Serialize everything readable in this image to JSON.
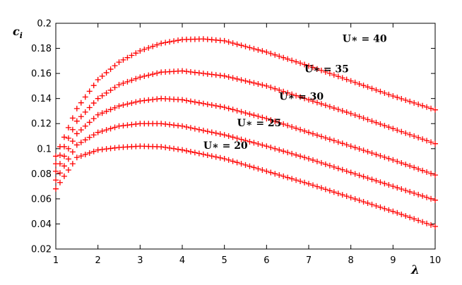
{
  "chart_data": {
    "type": "scatter",
    "xlabel": "λ",
    "ylabel": "c",
    "ylabel_sub": "i",
    "xlim": [
      1,
      10
    ],
    "ylim": [
      0.02,
      0.2
    ],
    "xticks": [
      "1",
      "2",
      "3",
      "4",
      "5",
      "6",
      "7",
      "8",
      "9",
      "10"
    ],
    "yticks": [
      "0.02",
      "0.04",
      "0.06",
      "0.08",
      "0.1",
      "0.12",
      "0.14",
      "0.16",
      "0.18",
      "0.2"
    ],
    "grid": false,
    "marker": "+",
    "marker_color": "#ff0000",
    "series": [
      {
        "label": "U∗ = 20",
        "points": [
          [
            1,
            0.068
          ],
          [
            1.5,
            0.093
          ],
          [
            2,
            0.099
          ],
          [
            2.5,
            0.101
          ],
          [
            3,
            0.102
          ],
          [
            3.5,
            0.1015
          ],
          [
            4,
            0.099
          ],
          [
            5,
            0.092
          ],
          [
            6,
            0.082
          ],
          [
            7,
            0.072
          ],
          [
            8,
            0.061
          ],
          [
            9,
            0.05
          ],
          [
            10,
            0.038
          ]
        ]
      },
      {
        "label": "U∗ = 25",
        "points": [
          [
            1,
            0.075
          ],
          [
            1.5,
            0.103
          ],
          [
            2,
            0.113
          ],
          [
            2.5,
            0.118
          ],
          [
            3,
            0.12
          ],
          [
            3.5,
            0.12
          ],
          [
            4,
            0.118
          ],
          [
            5,
            0.111
          ],
          [
            6,
            0.102
          ],
          [
            7,
            0.092
          ],
          [
            8,
            0.081
          ],
          [
            9,
            0.07
          ],
          [
            10,
            0.059
          ]
        ]
      },
      {
        "label": "U∗ = 30",
        "points": [
          [
            1,
            0.082
          ],
          [
            1.5,
            0.112
          ],
          [
            2,
            0.127
          ],
          [
            2.5,
            0.134
          ],
          [
            3,
            0.138
          ],
          [
            3.5,
            0.14
          ],
          [
            4,
            0.139
          ],
          [
            5,
            0.133
          ],
          [
            6,
            0.124
          ],
          [
            7,
            0.113
          ],
          [
            8,
            0.102
          ],
          [
            9,
            0.091
          ],
          [
            10,
            0.079
          ]
        ]
      },
      {
        "label": "U∗ = 35",
        "points": [
          [
            1,
            0.088
          ],
          [
            1.5,
            0.122
          ],
          [
            2,
            0.14
          ],
          [
            2.5,
            0.151
          ],
          [
            3,
            0.157
          ],
          [
            3.5,
            0.161
          ],
          [
            4,
            0.162
          ],
          [
            5,
            0.158
          ],
          [
            6,
            0.15
          ],
          [
            7,
            0.139
          ],
          [
            8,
            0.128
          ],
          [
            9,
            0.116
          ],
          [
            10,
            0.104
          ]
        ]
      },
      {
        "label": "U∗ = 40",
        "points": [
          [
            1,
            0.094
          ],
          [
            1.5,
            0.132
          ],
          [
            2,
            0.155
          ],
          [
            2.5,
            0.169
          ],
          [
            3,
            0.178
          ],
          [
            3.5,
            0.184
          ],
          [
            4,
            0.187
          ],
          [
            4.5,
            0.1875
          ],
          [
            5,
            0.186
          ],
          [
            6,
            0.177
          ],
          [
            7,
            0.166
          ],
          [
            8,
            0.154
          ],
          [
            9,
            0.142
          ],
          [
            10,
            0.131
          ]
        ]
      }
    ],
    "annotations": [
      {
        "text": "U∗ = 20",
        "x": 4.5,
        "y": 0.1
      },
      {
        "text": "U∗ = 25",
        "x": 5.3,
        "y": 0.118
      },
      {
        "text": "U∗ = 30",
        "x": 6.3,
        "y": 0.139
      },
      {
        "text": "U∗ = 35",
        "x": 6.9,
        "y": 0.161
      },
      {
        "text": "U∗ = 40",
        "x": 7.8,
        "y": 0.185
      }
    ]
  }
}
